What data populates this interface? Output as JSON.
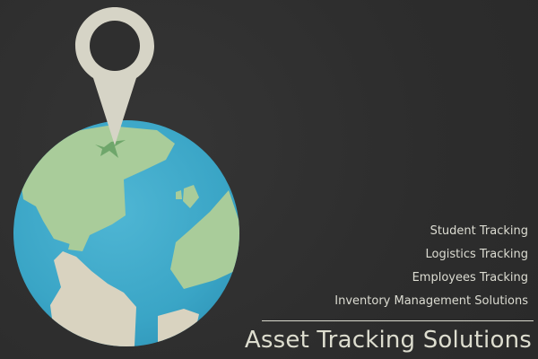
{
  "services": {
    "items": [
      {
        "label": "Student Tracking"
      },
      {
        "label": "Logistics Tracking"
      },
      {
        "label": "Employees Tracking"
      },
      {
        "label": "Inventory Management Solutions"
      }
    ]
  },
  "brand": {
    "title": "Asset Tracking Solutions"
  },
  "colors": {
    "background": "#2f2f2f",
    "ocean": "#3aa8c8",
    "land_green": "#a9cc9a",
    "land_beige": "#d9d3c0",
    "pin": "#d6d4c6",
    "text": "#dcdcd2"
  },
  "icons": {
    "pin": "map-pin-icon",
    "globe": "globe-icon"
  }
}
